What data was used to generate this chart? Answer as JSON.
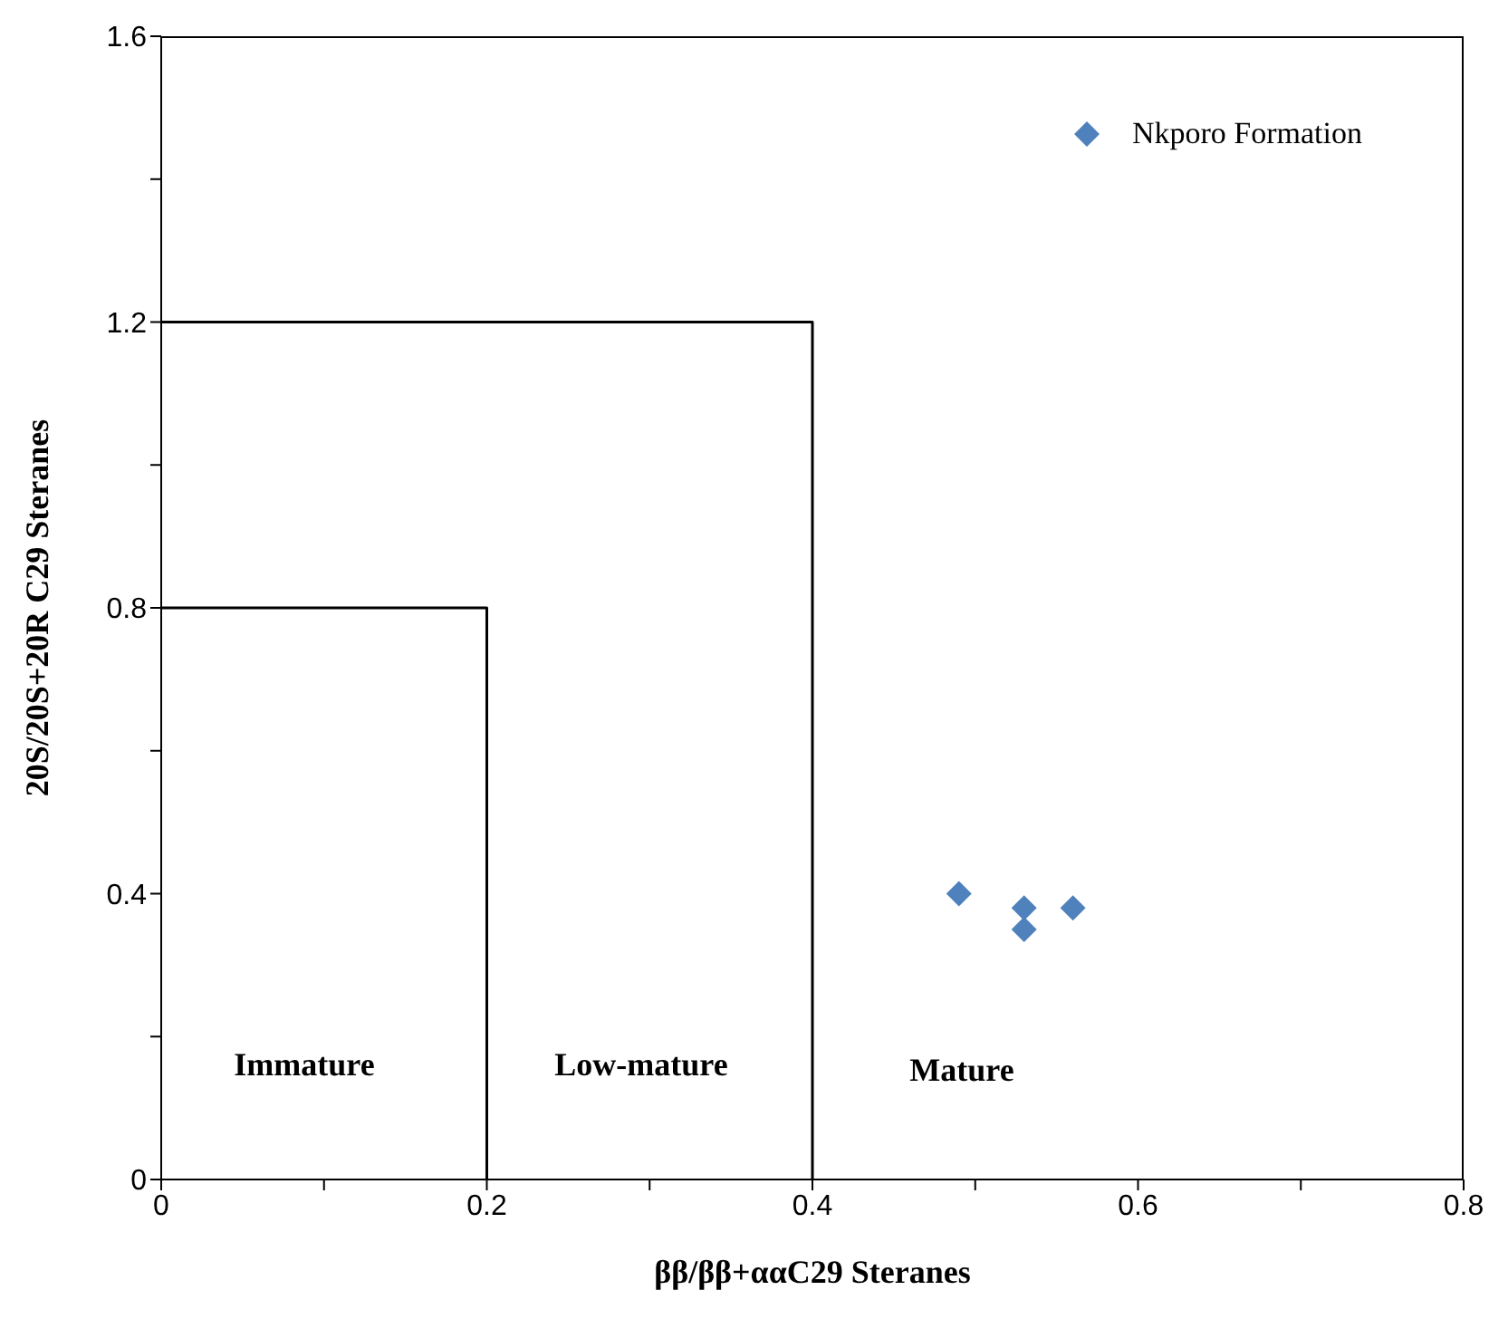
{
  "chart_data": {
    "type": "scatter",
    "xlabel": "ββ/ββ+ααC29 Steranes",
    "ylabel": "20S/20S+20R C29 Steranes",
    "xlim": [
      0,
      0.8
    ],
    "ylim": [
      0,
      1.6
    ],
    "xticks": [
      0,
      {
        "value": 0.1,
        "label": null
      },
      0.2,
      {
        "value": 0.3,
        "label": null
      },
      0.4,
      {
        "value": 0.5,
        "label": null
      },
      0.6,
      {
        "value": 0.7,
        "label": null
      },
      0.8
    ],
    "yticks": [
      0,
      {
        "value": 0.2,
        "label": null
      },
      0.4,
      {
        "value": 0.6,
        "label": null
      },
      0.8,
      {
        "value": 1.0,
        "label": null
      },
      1.2,
      {
        "value": 1.4,
        "label": null
      },
      1.6
    ],
    "legend": "top right",
    "marker": "diamond",
    "series": [
      {
        "name": "Nkporo Formation",
        "color": "#4f81bd",
        "x": [
          0.49,
          0.53,
          0.53,
          0.56
        ],
        "values": [
          0.4,
          0.38,
          0.35,
          0.38
        ]
      },
      {
        "type": "line",
        "color": "#000000",
        "marker": "none",
        "x": [
          0,
          0.2,
          0.2
        ],
        "values": [
          0.8,
          0.8,
          0
        ]
      },
      {
        "type": "line",
        "color": "#000000",
        "marker": "none",
        "x": [
          0,
          0.4,
          0.4
        ],
        "values": [
          1.2,
          1.2,
          0
        ]
      }
    ],
    "annotations": [
      "Immature",
      "Low-mature",
      "Mature"
    ]
  }
}
